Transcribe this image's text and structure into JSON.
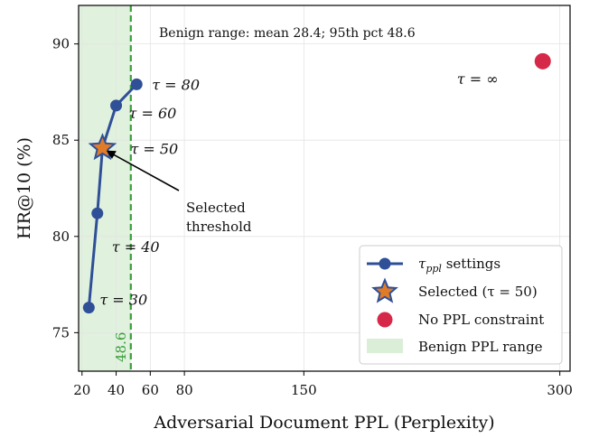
{
  "chart_data": {
    "type": "line",
    "xlabel": "Adversarial Document PPL (Perplexity)",
    "ylabel": "HR@10 (%)",
    "xlim": [
      18,
      306
    ],
    "ylim": [
      73,
      92
    ],
    "xticks": [
      20,
      40,
      60,
      80,
      150,
      300
    ],
    "yticks": [
      75,
      80,
      85,
      90
    ],
    "grid": true,
    "series": [
      {
        "name": "τppl settings",
        "color": "#2f4f97",
        "points": [
          {
            "x": 24,
            "y": 76.3,
            "label": "τ = 30"
          },
          {
            "x": 29,
            "y": 81.2,
            "label": "τ = 40"
          },
          {
            "x": 32,
            "y": 84.6,
            "label": "τ = 50"
          },
          {
            "x": 40,
            "y": 86.8,
            "label": "τ = 60"
          },
          {
            "x": 52,
            "y": 87.9,
            "label": "τ = 80"
          }
        ]
      }
    ],
    "selected": {
      "name": "Selected (τ = 50)",
      "x": 32,
      "y": 84.6,
      "color": "#e07b28"
    },
    "unconstrained": {
      "name": "No PPL constraint",
      "x": 290,
      "y": 89.1,
      "label": "τ = ∞",
      "color": "#d6294a"
    },
    "benign_range": {
      "name": "Benign PPL range",
      "x_min": 18,
      "x_max": 48.6,
      "color": "#dbeed8"
    },
    "threshold_line": {
      "x": 48.6,
      "label": "48.6",
      "color": "#3a9e3a"
    },
    "annotation_text": "Benign range: mean 28.4; 95th pct 48.6",
    "arrow_text": [
      "Selected",
      "threshold"
    ],
    "legend_position": "lower right"
  }
}
